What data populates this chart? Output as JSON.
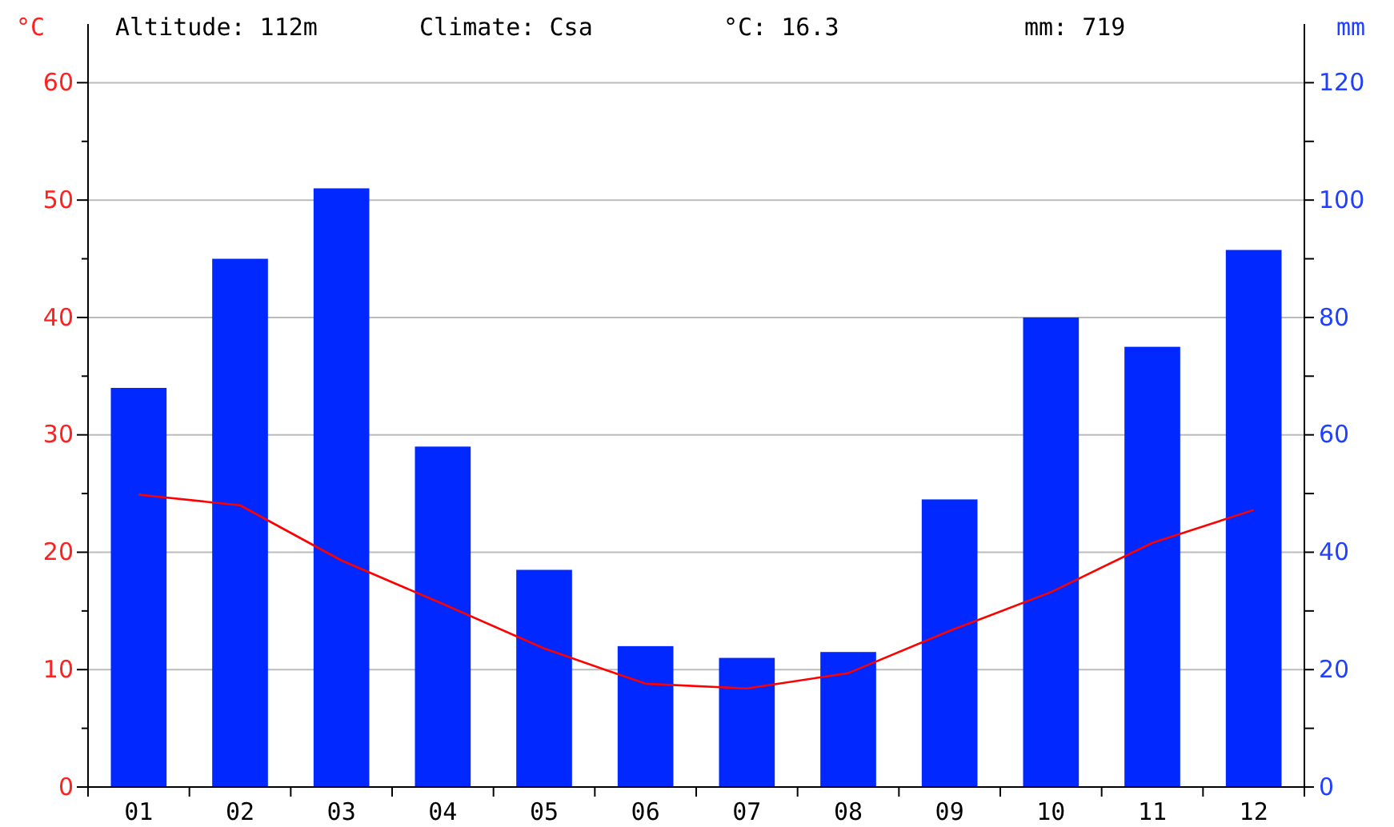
{
  "chart_data": {
    "type": "bar",
    "ylabel": "°C",
    "y2label": "mm",
    "annotations": [
      "Altitude: 112m",
      "Climate: Csa",
      "°C: 16.3",
      "mm: 719"
    ],
    "categories": [
      "01",
      "02",
      "03",
      "04",
      "05",
      "06",
      "07",
      "08",
      "09",
      "10",
      "11",
      "12"
    ],
    "series": [
      {
        "axis": "y2",
        "color": "#0028ff",
        "values": [
          68,
          90,
          102,
          58,
          37,
          24,
          22,
          23,
          49,
          80,
          75,
          91.5
        ]
      },
      {
        "type": "line",
        "axis": "y",
        "color": "#ff0000",
        "values": [
          24.9,
          24.0,
          19.3,
          15.6,
          11.8,
          8.8,
          8.4,
          9.7,
          13.3,
          16.6,
          20.8,
          23.6
        ]
      }
    ],
    "ylim": [
      0,
      65
    ],
    "yticks": [
      0,
      {
        "value": 5,
        "label": null
      },
      10,
      {
        "value": 15,
        "label": null
      },
      20,
      {
        "value": 25,
        "label": null
      },
      30,
      {
        "value": 35,
        "label": null
      },
      40,
      {
        "value": 45,
        "label": null
      },
      50,
      {
        "value": 55,
        "label": null
      },
      60
    ],
    "y2lim": [
      0,
      130
    ],
    "y2ticks": [
      0,
      {
        "value": 10,
        "label": null
      },
      20,
      {
        "value": 30,
        "label": null
      },
      40,
      {
        "value": 50,
        "label": null
      },
      60,
      {
        "value": 70,
        "label": null
      },
      80,
      {
        "value": 90,
        "label": null
      },
      100,
      {
        "value": 110,
        "label": null
      },
      120
    ],
    "grid": "y",
    "marker": "none",
    "line_style": "solid"
  }
}
